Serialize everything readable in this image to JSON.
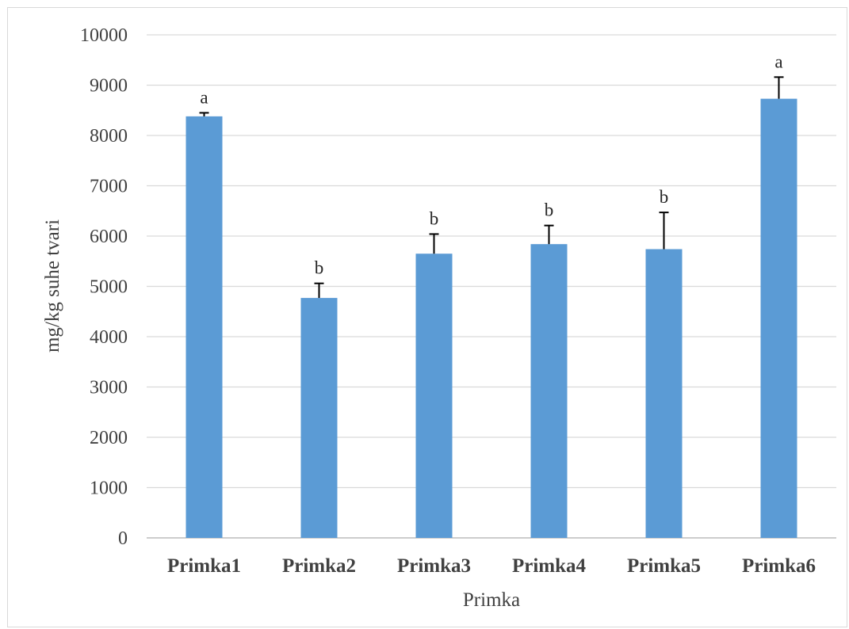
{
  "chart_data": {
    "type": "bar",
    "title": "",
    "xlabel": "Primka",
    "ylabel": "mg/kg suhe tvari",
    "ylim": [
      0,
      10000
    ],
    "yticks": [
      0,
      1000,
      2000,
      3000,
      4000,
      5000,
      6000,
      7000,
      8000,
      9000,
      10000
    ],
    "grid": true,
    "legend": "none",
    "bar_color": "#5b9bd5",
    "categories": [
      "Primka1",
      "Primka2",
      "Primka3",
      "Primka4",
      "Primka5",
      "Primka6"
    ],
    "values": [
      8380,
      4770,
      5650,
      5840,
      5740,
      8730
    ],
    "errors": [
      70,
      290,
      390,
      370,
      730,
      430
    ],
    "annotations": [
      "a",
      "b",
      "b",
      "b",
      "b",
      "a"
    ]
  }
}
